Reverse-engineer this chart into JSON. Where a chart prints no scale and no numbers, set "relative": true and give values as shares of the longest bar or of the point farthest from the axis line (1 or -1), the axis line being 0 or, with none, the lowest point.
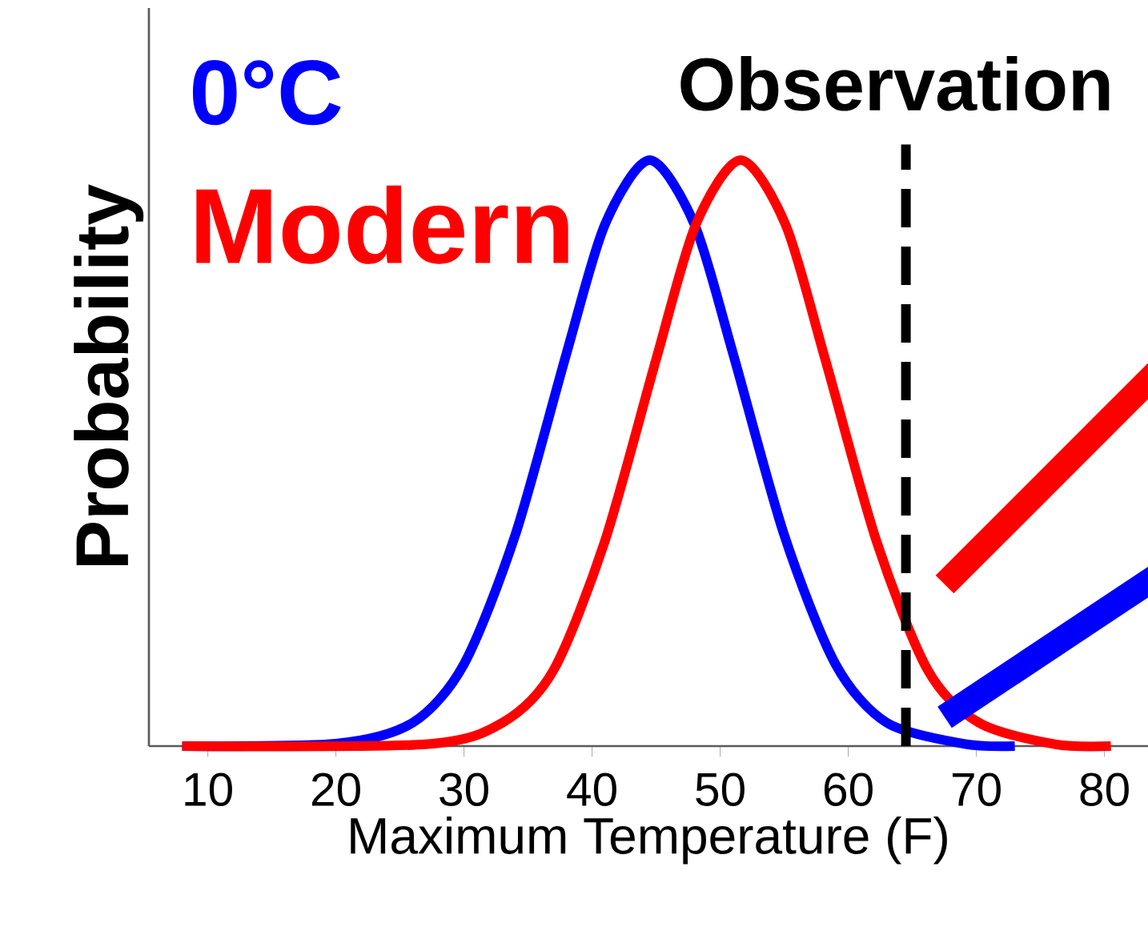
{
  "chart_data": {
    "type": "line",
    "relative": true,
    "xlabel": "Maximum Temperature (F)",
    "ylabel": "Probability",
    "xlim": [
      5.4,
      83.4
    ],
    "xticks": [
      10,
      20,
      30,
      40,
      50,
      60,
      70,
      80
    ],
    "series": [
      {
        "name": "0°C",
        "color": "#0000ff",
        "x": [
          8,
          20,
          26,
          30,
          34,
          38,
          41,
          44.5,
          48,
          51,
          55,
          59,
          63,
          69,
          73
        ],
        "values": [
          0,
          0.004,
          0.04,
          0.14,
          0.36,
          0.67,
          0.89,
          1,
          0.89,
          0.67,
          0.36,
          0.14,
          0.04,
          0.004,
          0
        ]
      },
      {
        "name": "Modern",
        "color": "#ff0000",
        "x": [
          8,
          27,
          33,
          37,
          41,
          45,
          48.1,
          51.6,
          55.1,
          58.2,
          62.2,
          66.2,
          70.2,
          76.2,
          80.5
        ],
        "values": [
          0,
          0.003,
          0.04,
          0.13,
          0.35,
          0.66,
          0.89,
          1,
          0.89,
          0.66,
          0.35,
          0.13,
          0.04,
          0.003,
          0
        ]
      }
    ],
    "ref_lines": [
      {
        "axis": "x",
        "value": 64.5,
        "label": "Observation",
        "color": "#000000",
        "line_style": "dashed"
      }
    ]
  }
}
